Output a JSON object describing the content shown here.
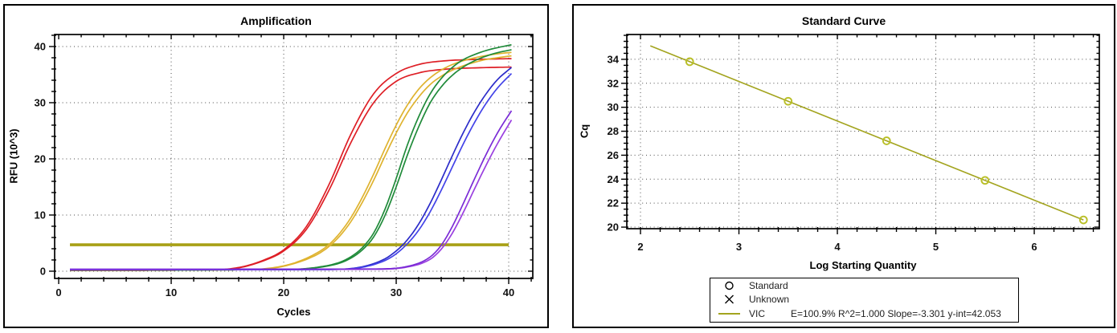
{
  "amplification": {
    "title": "Amplification",
    "xlabel": "Cycles",
    "ylabel": "RFU (10^3)",
    "chart_data": {
      "type": "line",
      "xlim": [
        -0.36,
        42.14
      ],
      "ylim": [
        -1.29,
        42.14
      ],
      "xticks": {
        "major": [
          0,
          10,
          20,
          30,
          40
        ],
        "minor_step": 2
      },
      "yticks": {
        "major": [
          0,
          10,
          20,
          30,
          40
        ],
        "minor_step": 2
      },
      "grid": "dotted",
      "threshold": {
        "y": 4.7,
        "x1": 1,
        "x2": 40,
        "color": "#a8a016",
        "width": 3.7
      },
      "series": [
        {
          "name": "red-replicate-1",
          "color": "#de1f26",
          "points": [
            [
              1,
              0.15
            ],
            [
              13,
              0.2
            ],
            [
              16,
              0.65
            ],
            [
              18,
              1.8
            ],
            [
              20,
              3.8
            ],
            [
              22,
              7.9
            ],
            [
              24,
              15.3
            ],
            [
              26,
              24.5
            ],
            [
              28,
              31.6
            ],
            [
              30,
              35.2
            ],
            [
              32,
              36.8
            ],
            [
              34,
              37.4
            ],
            [
              37,
              37.7
            ],
            [
              40.45,
              37.85
            ]
          ]
        },
        {
          "name": "red-replicate-2",
          "color": "#de1f26",
          "points": [
            [
              1,
              0.15
            ],
            [
              13,
              0.2
            ],
            [
              16,
              0.6
            ],
            [
              18,
              1.7
            ],
            [
              20,
              3.6
            ],
            [
              22,
              7.4
            ],
            [
              24,
              14.3
            ],
            [
              26,
              23
            ],
            [
              28,
              30
            ],
            [
              30,
              33.8
            ],
            [
              32,
              35.3
            ],
            [
              34,
              35.9
            ],
            [
              37,
              36.2
            ],
            [
              40.45,
              36.35
            ]
          ]
        },
        {
          "name": "orange-replicate-1",
          "color": "#dfb32f",
          "points": [
            [
              1,
              0.2
            ],
            [
              16,
              0.25
            ],
            [
              19,
              0.6
            ],
            [
              21,
              1.5
            ],
            [
              23,
              3.3
            ],
            [
              24,
              4.7
            ],
            [
              25,
              6.8
            ],
            [
              26,
              9.6
            ],
            [
              27,
              13.2
            ],
            [
              28,
              17.3
            ],
            [
              29,
              21.8
            ],
            [
              30,
              26
            ],
            [
              31,
              29.6
            ],
            [
              32,
              32.4
            ],
            [
              33,
              34.4
            ],
            [
              34,
              35.8
            ],
            [
              35,
              36.8
            ],
            [
              36,
              37.5
            ],
            [
              37,
              38
            ],
            [
              38,
              38.4
            ],
            [
              39,
              38.7
            ],
            [
              40.45,
              39.0
            ]
          ]
        },
        {
          "name": "orange-replicate-2",
          "color": "#dfb32f",
          "points": [
            [
              1,
              0.2
            ],
            [
              16,
              0.25
            ],
            [
              19,
              0.55
            ],
            [
              21,
              1.4
            ],
            [
              23,
              3.0
            ],
            [
              24,
              4.35
            ],
            [
              25,
              6.3
            ],
            [
              26,
              8.9
            ],
            [
              27,
              12.3
            ],
            [
              28,
              16.2
            ],
            [
              29,
              20.5
            ],
            [
              30,
              24.6
            ],
            [
              31,
              28.2
            ],
            [
              32,
              31
            ],
            [
              33,
              33.2
            ],
            [
              34,
              34.7
            ],
            [
              35,
              35.8
            ],
            [
              36,
              36.6
            ],
            [
              37,
              37.2
            ],
            [
              38,
              37.7
            ],
            [
              39,
              38
            ],
            [
              40.45,
              38.4
            ]
          ]
        },
        {
          "name": "green-replicate-1",
          "color": "#208b3a",
          "points": [
            [
              1,
              0.2
            ],
            [
              20,
              0.3
            ],
            [
              23,
              0.7
            ],
            [
              25,
              1.6
            ],
            [
              26,
              2.6
            ],
            [
              27,
              4.2
            ],
            [
              28,
              6.8
            ],
            [
              29,
              11
            ],
            [
              30,
              16.5
            ],
            [
              31,
              22.5
            ],
            [
              32,
              27.5
            ],
            [
              33,
              31.5
            ],
            [
              34,
              34.3
            ],
            [
              35,
              36.3
            ],
            [
              36,
              37.7
            ],
            [
              37,
              38.6
            ],
            [
              38,
              39.3
            ],
            [
              39,
              39.8
            ],
            [
              40.45,
              40.4
            ]
          ]
        },
        {
          "name": "green-replicate-2",
          "color": "#208b3a",
          "points": [
            [
              1,
              0.2
            ],
            [
              20,
              0.3
            ],
            [
              23,
              0.65
            ],
            [
              25,
              1.45
            ],
            [
              26,
              2.35
            ],
            [
              27,
              3.8
            ],
            [
              28,
              6.1
            ],
            [
              29,
              9.9
            ],
            [
              30,
              15
            ],
            [
              31,
              20.7
            ],
            [
              32,
              25.7
            ],
            [
              33,
              29.9
            ],
            [
              34,
              32.8
            ],
            [
              35,
              34.9
            ],
            [
              36,
              36.4
            ],
            [
              37,
              37.5
            ],
            [
              38,
              38.3
            ],
            [
              39,
              38.9
            ],
            [
              40.45,
              39.5
            ]
          ]
        },
        {
          "name": "blue-replicate-1",
          "color": "#2c2cc9",
          "points": [
            [
              1,
              0.25
            ],
            [
              24,
              0.3
            ],
            [
              27,
              0.8
            ],
            [
              29,
              2.2
            ],
            [
              30,
              3.6
            ],
            [
              31,
              5.6
            ],
            [
              32,
              8.4
            ],
            [
              33,
              12
            ],
            [
              34,
              16.2
            ],
            [
              35,
              20.6
            ],
            [
              36,
              24.8
            ],
            [
              37,
              28.5
            ],
            [
              38,
              31.6
            ],
            [
              39,
              34.1
            ],
            [
              40.45,
              36.6
            ]
          ]
        },
        {
          "name": "blue-replicate-2",
          "color": "#4343e8",
          "points": [
            [
              1,
              0.25
            ],
            [
              24,
              0.3
            ],
            [
              27,
              0.7
            ],
            [
              29,
              1.9
            ],
            [
              30,
              3.1
            ],
            [
              31,
              4.9
            ],
            [
              32,
              7.3
            ],
            [
              33,
              10.5
            ],
            [
              34,
              14.4
            ],
            [
              35,
              18.6
            ],
            [
              36,
              22.8
            ],
            [
              37,
              26.6
            ],
            [
              38,
              29.9
            ],
            [
              39,
              32.6
            ],
            [
              40.45,
              35.6
            ]
          ]
        },
        {
          "name": "purple-replicate-2",
          "color": "#9a3fe0",
          "points": [
            [
              1,
              0.3
            ],
            [
              28,
              0.35
            ],
            [
              31,
              0.75
            ],
            [
              33,
              2.1
            ],
            [
              34,
              3.9
            ],
            [
              35,
              6.8
            ],
            [
              36,
              10.6
            ],
            [
              37,
              14.8
            ],
            [
              38,
              18.9
            ],
            [
              39,
              22.7
            ],
            [
              40.45,
              27.6
            ]
          ]
        },
        {
          "name": "purple-replicate-1",
          "color": "#7a2bd6",
          "points": [
            [
              1,
              0.35
            ],
            [
              28,
              0.4
            ],
            [
              31,
              0.85
            ],
            [
              33,
              2.5
            ],
            [
              34,
              4.6
            ],
            [
              35,
              8
            ],
            [
              36,
              12.2
            ],
            [
              37,
              16.6
            ],
            [
              38,
              20.8
            ],
            [
              39,
              24.6
            ],
            [
              40.45,
              29.2
            ]
          ]
        }
      ]
    }
  },
  "standard_curve": {
    "title": "Standard Curve",
    "xlabel": "Log Starting Quantity",
    "ylabel": "Cq",
    "chart_data": {
      "type": "scatter",
      "xlim": [
        1.861,
        6.661
      ],
      "ylim": [
        19.87,
        36.07
      ],
      "xticks": {
        "major": [
          2,
          3,
          4,
          5,
          6
        ],
        "minor_step": 0.2
      },
      "yticks": {
        "major": [
          20,
          22,
          24,
          26,
          28,
          30,
          32,
          34
        ],
        "minor_step": 0.5
      },
      "grid": "dotted",
      "points": {
        "x": [
          2.5,
          3.5,
          4.5,
          5.5,
          6.5
        ],
        "cq": [
          33.8,
          30.5,
          27.2,
          23.9,
          20.6
        ]
      },
      "fit_line": {
        "x1": 2.1,
        "x2": 6.5,
        "slope": -3.301,
        "y_intercept": 42.053
      },
      "line_color": "#a3a41e",
      "marker_color": "#b9bf27"
    },
    "legend": {
      "items": [
        {
          "symbol": "circle",
          "label": "Standard"
        },
        {
          "symbol": "x",
          "label": "Unknown"
        },
        {
          "symbol": "line",
          "label": "VIC",
          "stats": "E=100.9% R^2=1.000 Slope=-3.301 y-int=42.053"
        }
      ]
    }
  }
}
